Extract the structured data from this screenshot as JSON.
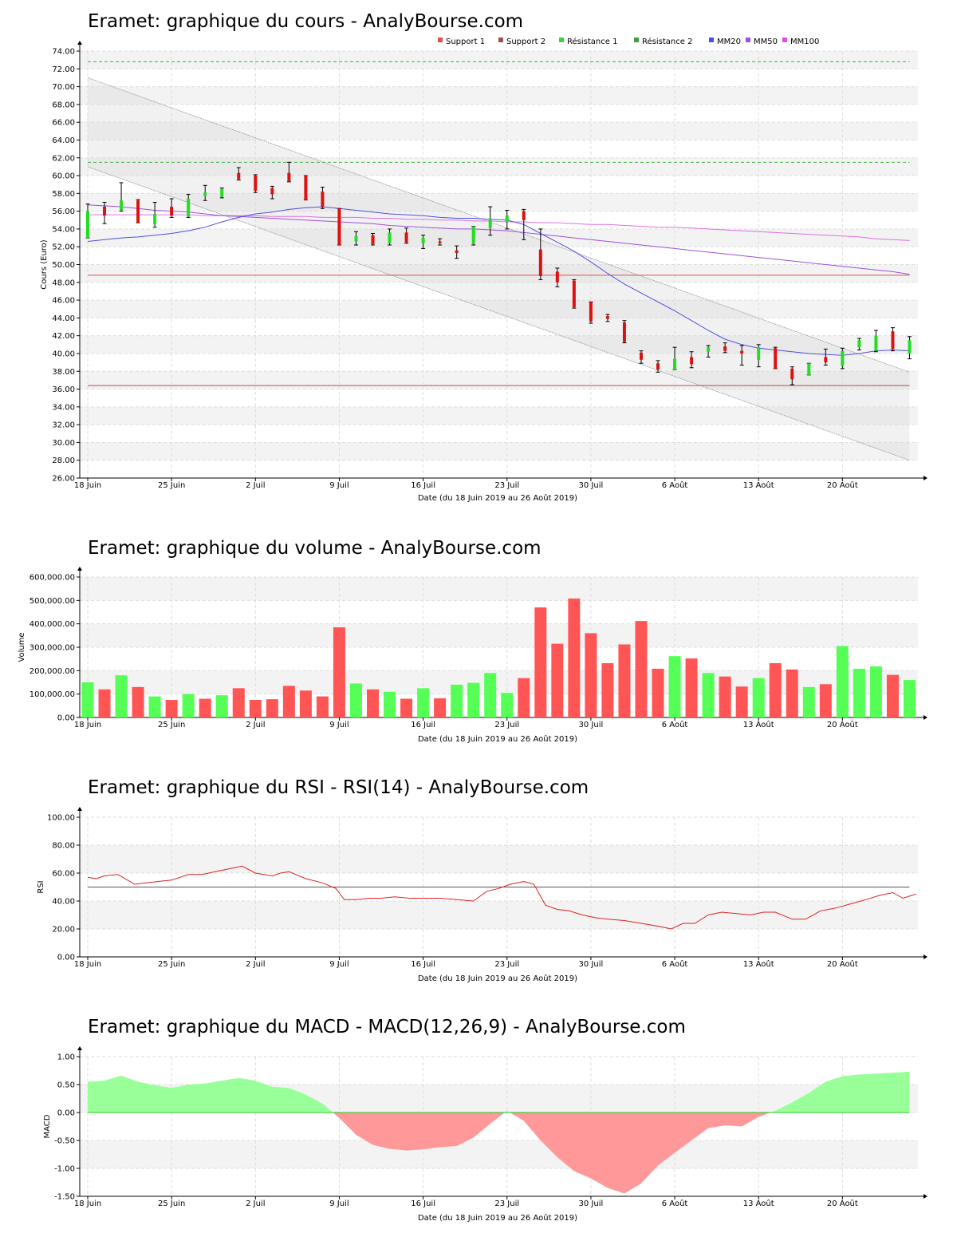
{
  "chart_data": [
    {
      "type": "candlestick",
      "title": "Eramet: graphique du cours - AnalyBourse.com",
      "xlabel": "Date (du 18 Juin 2019 au 26 Août 2019)",
      "ylabel": "Cours (Euro)",
      "ylim": [
        26,
        74
      ],
      "yticks": [
        "26.00",
        "28.00",
        "30.00",
        "32.00",
        "34.00",
        "36.00",
        "38.00",
        "40.00",
        "42.00",
        "44.00",
        "46.00",
        "48.00",
        "50.00",
        "52.00",
        "54.00",
        "56.00",
        "58.00",
        "60.00",
        "62.00",
        "64.00",
        "66.00",
        "68.00",
        "70.00",
        "72.00",
        "74.00"
      ],
      "xticks": [
        {
          "label": "18 Juin",
          "i": 0
        },
        {
          "label": "25 Juin",
          "i": 5
        },
        {
          "label": "2 Juil",
          "i": 10
        },
        {
          "label": "9 Juil",
          "i": 15
        },
        {
          "label": "16 Juil",
          "i": 20
        },
        {
          "label": "23 Juil",
          "i": 25
        },
        {
          "label": "30 Juil",
          "i": 30
        },
        {
          "label": "6 Août",
          "i": 35
        },
        {
          "label": "13 Août",
          "i": 40
        },
        {
          "label": "20 Août",
          "i": 45
        }
      ],
      "grid": true,
      "legend_position": "top-right",
      "legend": [
        {
          "name": "Support 1",
          "color": "#e05050"
        },
        {
          "name": "Support 2",
          "color": "#a05050"
        },
        {
          "name": "Résistance 1",
          "color": "#40d040"
        },
        {
          "name": "Résistance 2",
          "color": "#40a040"
        },
        {
          "name": "MM20",
          "color": "#5050e0"
        },
        {
          "name": "MM50",
          "color": "#a050e0"
        },
        {
          "name": "MM100",
          "color": "#e050e0"
        }
      ],
      "levels": {
        "support1": 48.8,
        "support2": 36.4,
        "resistance1": 61.5,
        "resistance2": 72.8
      },
      "ohlc": [
        [
          53.0,
          56.8,
          53.0,
          56.0
        ],
        [
          56.5,
          57.0,
          54.6,
          55.5
        ],
        [
          56.1,
          59.2,
          56.0,
          57.2
        ],
        [
          57.2,
          57.3,
          54.7,
          54.7
        ],
        [
          54.5,
          57.0,
          54.2,
          55.7
        ],
        [
          56.5,
          57.4,
          55.3,
          55.5
        ],
        [
          55.4,
          57.9,
          55.3,
          57.4
        ],
        [
          57.7,
          58.9,
          57.2,
          58.1
        ],
        [
          57.6,
          58.6,
          57.5,
          58.5
        ],
        [
          60.3,
          60.9,
          59.5,
          59.6
        ],
        [
          60.0,
          60.1,
          58.1,
          58.3
        ],
        [
          58.6,
          58.8,
          57.4,
          57.9
        ],
        [
          60.3,
          61.5,
          59.3,
          59.3
        ],
        [
          60.0,
          60.0,
          57.3,
          57.2
        ],
        [
          58.2,
          58.7,
          56.3,
          56.5
        ],
        [
          56.3,
          56.3,
          52.2,
          52.2
        ],
        [
          52.6,
          53.7,
          52.2,
          53.2
        ],
        [
          53.3,
          53.5,
          52.2,
          52.3
        ],
        [
          52.4,
          54.0,
          52.2,
          53.6
        ],
        [
          53.6,
          54.1,
          52.4,
          52.5
        ],
        [
          52.4,
          53.3,
          51.8,
          53.0
        ],
        [
          52.6,
          52.9,
          52.2,
          52.4
        ],
        [
          51.6,
          52.1,
          50.7,
          51.3
        ],
        [
          52.3,
          54.3,
          52.2,
          54.3
        ],
        [
          54.1,
          56.5,
          53.3,
          55.2
        ],
        [
          54.8,
          56.1,
          54.0,
          55.5
        ],
        [
          56.0,
          56.2,
          52.8,
          55.0
        ],
        [
          51.7,
          54.0,
          48.3,
          48.7
        ],
        [
          49.2,
          49.6,
          47.5,
          48.0
        ],
        [
          48.2,
          48.3,
          45.1,
          45.2
        ],
        [
          45.8,
          45.8,
          43.4,
          43.6
        ],
        [
          44.2,
          44.4,
          43.6,
          43.9
        ],
        [
          43.5,
          43.7,
          41.2,
          41.3
        ],
        [
          40.1,
          40.3,
          38.9,
          39.3
        ],
        [
          38.9,
          39.2,
          37.9,
          38.2
        ],
        [
          38.2,
          40.7,
          38.2,
          39.4
        ],
        [
          39.6,
          40.2,
          38.4,
          38.8
        ],
        [
          40.2,
          40.9,
          39.6,
          40.7
        ],
        [
          40.8,
          41.2,
          40.1,
          40.3
        ],
        [
          40.3,
          40.9,
          38.7,
          40.0
        ],
        [
          39.3,
          41.0,
          38.5,
          40.7
        ],
        [
          40.6,
          40.7,
          38.3,
          38.3
        ],
        [
          38.3,
          38.5,
          36.5,
          37.1
        ],
        [
          37.5,
          38.9,
          37.6,
          38.9
        ],
        [
          39.6,
          40.5,
          38.7,
          39.0
        ],
        [
          38.6,
          40.6,
          38.3,
          40.3
        ],
        [
          40.7,
          41.7,
          40.4,
          41.5
        ],
        [
          40.3,
          42.6,
          40.2,
          42.0
        ],
        [
          42.5,
          42.9,
          40.3,
          40.5
        ],
        [
          40.0,
          41.9,
          39.4,
          41.5
        ]
      ],
      "mm20": [
        52.6,
        52.8,
        53.0,
        53.1,
        53.3,
        53.5,
        53.8,
        54.2,
        54.8,
        55.3,
        55.7,
        55.9,
        56.2,
        56.4,
        56.5,
        56.3,
        56.1,
        55.9,
        55.7,
        55.6,
        55.5,
        55.3,
        55.2,
        55.2,
        55.1,
        55.0,
        54.5,
        53.5,
        52.5,
        51.5,
        50.3,
        49.0,
        47.8,
        46.8,
        45.8,
        44.8,
        43.7,
        42.6,
        41.6,
        41.0,
        40.6,
        40.4,
        40.2,
        40.0,
        39.9,
        39.8,
        40.0,
        40.3,
        40.4,
        40.3
      ],
      "mm50": [
        56.7,
        56.6,
        56.5,
        56.3,
        56.1,
        56.0,
        55.9,
        55.7,
        55.5,
        55.4,
        55.3,
        55.2,
        55.1,
        55.0,
        54.9,
        54.8,
        54.7,
        54.6,
        54.4,
        54.3,
        54.2,
        54.1,
        54.0,
        54.0,
        53.9,
        53.8,
        53.6,
        53.4,
        53.2,
        53.0,
        52.8,
        52.6,
        52.4,
        52.2,
        52.0,
        51.8,
        51.6,
        51.4,
        51.2,
        51.0,
        50.8,
        50.6,
        50.4,
        50.2,
        50.0,
        49.8,
        49.6,
        49.4,
        49.2,
        48.9
      ],
      "mm100": [
        55.6,
        55.6,
        55.6,
        55.6,
        55.6,
        55.6,
        55.6,
        55.5,
        55.5,
        55.5,
        55.5,
        55.4,
        55.4,
        55.4,
        55.3,
        55.3,
        55.3,
        55.2,
        55.2,
        55.1,
        55.1,
        55.0,
        55.0,
        54.9,
        54.9,
        54.8,
        54.8,
        54.7,
        54.7,
        54.6,
        54.5,
        54.5,
        54.4,
        54.3,
        54.2,
        54.2,
        54.1,
        54.0,
        53.9,
        53.8,
        53.7,
        53.6,
        53.5,
        53.4,
        53.3,
        53.2,
        53.1,
        52.9,
        52.8,
        52.7
      ],
      "channels": [
        [
          71.0,
          37.9
        ],
        [
          61.0,
          28.0
        ]
      ]
    },
    {
      "type": "bar",
      "title": "Eramet: graphique du volume - AnalyBourse.com",
      "xlabel": "Date (du 18 Juin 2019 au 26 Août 2019)",
      "ylabel": "Volume",
      "ylim": [
        0,
        600000
      ],
      "yticks": [
        "0.00",
        "100,000.00",
        "200,000.00",
        "300,000.00",
        "400,000.00",
        "500,000.00",
        "600,000.00"
      ],
      "xticks": [
        {
          "label": "18 Juin",
          "i": 0
        },
        {
          "label": "25 Juin",
          "i": 5
        },
        {
          "label": "2 Juil",
          "i": 10
        },
        {
          "label": "9 Juil",
          "i": 15
        },
        {
          "label": "16 Juil",
          "i": 20
        },
        {
          "label": "23 Juil",
          "i": 25
        },
        {
          "label": "30 Juil",
          "i": 30
        },
        {
          "label": "6 Août",
          "i": 35
        },
        {
          "label": "13 Août",
          "i": 40
        },
        {
          "label": "20 Août",
          "i": 45
        }
      ],
      "values": [
        150000,
        120000,
        180000,
        130000,
        90000,
        75000,
        100000,
        80000,
        95000,
        125000,
        75000,
        78000,
        135000,
        115000,
        90000,
        385000,
        145000,
        120000,
        110000,
        80000,
        125000,
        82000,
        140000,
        148000,
        190000,
        105000,
        168000,
        470000,
        315000,
        508000,
        360000,
        232000,
        312000,
        412000,
        208000,
        262000,
        252000,
        190000,
        175000,
        132000,
        168000,
        232000,
        205000,
        130000,
        142000,
        305000,
        208000,
        218000,
        182000,
        160000
      ],
      "up": [
        true,
        false,
        true,
        false,
        true,
        false,
        true,
        false,
        true,
        false,
        false,
        false,
        false,
        false,
        false,
        false,
        true,
        false,
        true,
        false,
        true,
        false,
        true,
        true,
        true,
        true,
        false,
        false,
        false,
        false,
        false,
        false,
        false,
        false,
        false,
        true,
        false,
        true,
        false,
        false,
        true,
        false,
        false,
        true,
        false,
        true,
        true,
        true,
        false,
        true
      ]
    },
    {
      "type": "line",
      "title": "Eramet: graphique du RSI - RSI(14) - AnalyBourse.com",
      "xlabel": "Date (du 18 Juin 2019 au 26 Août 2019)",
      "ylabel": "RSI",
      "ylim": [
        0,
        100
      ],
      "yticks": [
        "0.00",
        "20.00",
        "40.00",
        "60.00",
        "80.00",
        "100.00"
      ],
      "xticks": [
        {
          "label": "18 Juin",
          "i": 0
        },
        {
          "label": "25 Juin",
          "i": 5
        },
        {
          "label": "2 Juil",
          "i": 10
        },
        {
          "label": "9 Juil",
          "i": 15
        },
        {
          "label": "16 Juil",
          "i": 20
        },
        {
          "label": "23 Juil",
          "i": 25
        },
        {
          "label": "30 Juil",
          "i": 30
        },
        {
          "label": "6 Août",
          "i": 35
        },
        {
          "label": "13 Août",
          "i": 40
        },
        {
          "label": "20 Août",
          "i": 45
        }
      ],
      "reference": 50,
      "values": [
        57,
        56,
        58,
        59,
        52,
        53,
        54,
        55,
        59,
        59,
        61,
        63,
        65,
        60,
        58,
        60,
        61,
        56,
        53,
        49,
        41,
        41,
        42,
        42,
        43,
        42,
        42,
        42,
        41,
        40,
        47,
        49,
        52,
        54,
        52,
        37,
        34,
        33,
        30,
        28,
        27,
        26,
        24,
        22,
        20,
        24,
        24,
        30,
        32,
        31,
        30,
        32,
        32,
        27,
        27,
        33,
        35,
        38,
        41,
        44,
        46,
        42,
        45
      ],
      "values_x": [
        0,
        0.5,
        1,
        1.8,
        2.8,
        3.5,
        4.2,
        5,
        6,
        6.8,
        7.6,
        8.4,
        9.2,
        10,
        11,
        11.5,
        12,
        13,
        14,
        14.8,
        15.3,
        16,
        16.8,
        17.5,
        18.3,
        19.2,
        20,
        21,
        22,
        23,
        23.8,
        24.5,
        25.2,
        26,
        26.6,
        27.3,
        28,
        28.7,
        29.5,
        30.3,
        31,
        32,
        33,
        34,
        34.8,
        35.5,
        36.2,
        37,
        37.8,
        38.7,
        39.5,
        40.3,
        41,
        42,
        42.8,
        43.7,
        44.6,
        45.5,
        46.4,
        47.2,
        48,
        48.6,
        49.4
      ]
    },
    {
      "type": "area",
      "title": "Eramet: graphique du MACD - MACD(12,26,9) - AnalyBourse.com",
      "xlabel": "Date (du 18 Juin 2019 au 26 Août 2019)",
      "ylabel": "MACD",
      "ylim": [
        -1.5,
        1.0
      ],
      "yticks": [
        "-1.50",
        "-1.00",
        "-0.50",
        "0.00",
        "0.50",
        "1.00"
      ],
      "xticks": [
        {
          "label": "18 Juin",
          "i": 0
        },
        {
          "label": "25 Juin",
          "i": 5
        },
        {
          "label": "2 Juil",
          "i": 10
        },
        {
          "label": "9 Juil",
          "i": 15
        },
        {
          "label": "16 Juil",
          "i": 20
        },
        {
          "label": "23 Juil",
          "i": 25
        },
        {
          "label": "30 Juil",
          "i": 30
        },
        {
          "label": "6 Août",
          "i": 35
        },
        {
          "label": "13 Août",
          "i": 40
        },
        {
          "label": "20 Août",
          "i": 45
        }
      ],
      "values": [
        0.55,
        0.57,
        0.66,
        0.55,
        0.49,
        0.44,
        0.5,
        0.52,
        0.57,
        0.62,
        0.57,
        0.46,
        0.44,
        0.32,
        0.16,
        -0.1,
        -0.4,
        -0.58,
        -0.65,
        -0.68,
        -0.66,
        -0.62,
        -0.6,
        -0.45,
        -0.2,
        0.03,
        -0.15,
        -0.5,
        -0.8,
        -1.05,
        -1.18,
        -1.35,
        -1.45,
        -1.27,
        -0.95,
        -0.72,
        -0.5,
        -0.28,
        -0.23,
        -0.25,
        -0.08,
        0.03,
        0.18,
        0.35,
        0.55,
        0.65,
        0.68,
        0.73
      ],
      "values_x": [
        0,
        1,
        2,
        3,
        4,
        5,
        6,
        7,
        8,
        9,
        10,
        11,
        12,
        13,
        14,
        15,
        16,
        17,
        18,
        19,
        20,
        21,
        22,
        23,
        24,
        25,
        26,
        27,
        28,
        29,
        30,
        31,
        32,
        33,
        34,
        35,
        36,
        37,
        38,
        39,
        40,
        41,
        42,
        43,
        44,
        45,
        46,
        49
      ]
    }
  ]
}
